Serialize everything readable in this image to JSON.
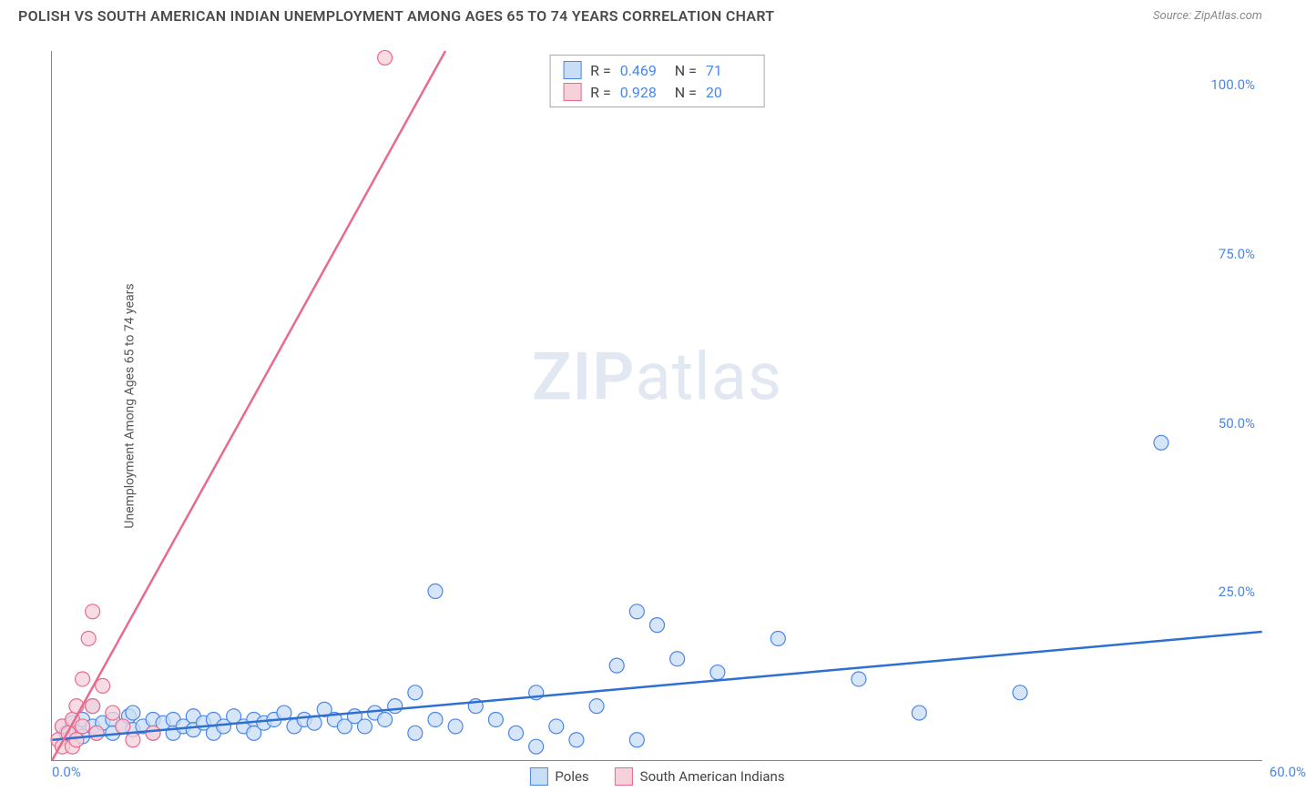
{
  "header": {
    "title": "POLISH VS SOUTH AMERICAN INDIAN UNEMPLOYMENT AMONG AGES 65 TO 74 YEARS CORRELATION CHART",
    "source": "Source: ZipAtlas.com"
  },
  "watermark": {
    "zip": "ZIP",
    "atlas": "atlas"
  },
  "chart": {
    "type": "scatter",
    "y_label": "Unemployment Among Ages 65 to 74 years",
    "xlim": [
      0,
      60
    ],
    "ylim": [
      0,
      105
    ],
    "x_ticks": [
      {
        "value": 0,
        "label": "0.0%"
      },
      {
        "value": 60,
        "label": "60.0%"
      }
    ],
    "y_ticks": [
      {
        "value": 25,
        "label": "25.0%"
      },
      {
        "value": 50,
        "label": "50.0%"
      },
      {
        "value": 75,
        "label": "75.0%"
      },
      {
        "value": 100,
        "label": "100.0%"
      }
    ],
    "series": [
      {
        "id": "poles",
        "name": "Poles",
        "marker_fill": "#c8ddf6",
        "marker_stroke": "#4a86e8",
        "line_color": "#2f6fd0",
        "line_width": 2.5,
        "marker_radius": 8,
        "stats": {
          "r_label": "R =",
          "r": "0.469",
          "n_label": "N =",
          "n": "71"
        },
        "regression": {
          "x1": 0,
          "y1": 3.0,
          "x2": 60,
          "y2": 19.0
        },
        "points": [
          [
            0.5,
            5
          ],
          [
            0.7,
            4
          ],
          [
            1.0,
            5.5
          ],
          [
            1.2,
            4.2
          ],
          [
            1.5,
            6
          ],
          [
            1.5,
            3.5
          ],
          [
            2.0,
            5
          ],
          [
            2.0,
            8
          ],
          [
            2.2,
            4
          ],
          [
            2.5,
            5.5
          ],
          [
            3.0,
            6
          ],
          [
            3.0,
            4
          ],
          [
            3.5,
            5
          ],
          [
            3.8,
            6.5
          ],
          [
            4.0,
            4.5
          ],
          [
            4.0,
            7
          ],
          [
            4.5,
            5
          ],
          [
            5.0,
            6
          ],
          [
            5.0,
            4
          ],
          [
            5.5,
            5.5
          ],
          [
            6.0,
            6
          ],
          [
            6.0,
            4
          ],
          [
            6.5,
            5
          ],
          [
            7.0,
            6.5
          ],
          [
            7.0,
            4.5
          ],
          [
            7.5,
            5.5
          ],
          [
            8.0,
            6
          ],
          [
            8.0,
            4
          ],
          [
            8.5,
            5
          ],
          [
            9.0,
            6.5
          ],
          [
            9.5,
            5
          ],
          [
            10,
            6
          ],
          [
            10,
            4
          ],
          [
            10.5,
            5.5
          ],
          [
            11,
            6
          ],
          [
            11.5,
            7
          ],
          [
            12,
            5
          ],
          [
            12.5,
            6
          ],
          [
            13,
            5.5
          ],
          [
            13.5,
            7.5
          ],
          [
            14,
            6
          ],
          [
            14.5,
            5
          ],
          [
            15,
            6.5
          ],
          [
            15.5,
            5
          ],
          [
            16,
            7
          ],
          [
            16.5,
            6
          ],
          [
            17,
            8
          ],
          [
            18,
            4
          ],
          [
            18,
            10
          ],
          [
            19,
            6
          ],
          [
            19,
            25
          ],
          [
            20,
            5
          ],
          [
            21,
            8
          ],
          [
            22,
            6
          ],
          [
            23,
            4
          ],
          [
            24,
            10
          ],
          [
            24,
            2
          ],
          [
            25,
            5
          ],
          [
            26,
            3
          ],
          [
            27,
            8
          ],
          [
            28,
            14
          ],
          [
            29,
            22
          ],
          [
            29,
            3
          ],
          [
            30,
            20
          ],
          [
            31,
            15
          ],
          [
            33,
            13
          ],
          [
            36,
            18
          ],
          [
            40,
            12
          ],
          [
            43,
            7
          ],
          [
            55,
            47
          ],
          [
            48,
            10
          ]
        ]
      },
      {
        "id": "sai",
        "name": "South American Indians",
        "marker_fill": "#f6d0da",
        "marker_stroke": "#e96a8d",
        "line_color": "#e96a8d",
        "line_width": 2.5,
        "marker_radius": 8,
        "stats": {
          "r_label": "R =",
          "r": "0.928",
          "n_label": "N =",
          "n": "20"
        },
        "regression": {
          "x1": 0,
          "y1": 0.0,
          "x2": 19.5,
          "y2": 105.0
        },
        "points": [
          [
            0.3,
            3
          ],
          [
            0.5,
            2
          ],
          [
            0.5,
            5
          ],
          [
            0.8,
            4
          ],
          [
            1.0,
            6
          ],
          [
            1.0,
            2
          ],
          [
            1.2,
            8
          ],
          [
            1.2,
            3
          ],
          [
            1.5,
            12
          ],
          [
            1.5,
            5
          ],
          [
            1.8,
            18
          ],
          [
            2.0,
            22
          ],
          [
            2.0,
            8
          ],
          [
            2.2,
            4
          ],
          [
            2.5,
            11
          ],
          [
            3.0,
            7
          ],
          [
            3.5,
            5
          ],
          [
            4.0,
            3
          ],
          [
            5.0,
            4
          ],
          [
            16.5,
            104
          ]
        ]
      }
    ],
    "background_color": "#ffffff"
  }
}
